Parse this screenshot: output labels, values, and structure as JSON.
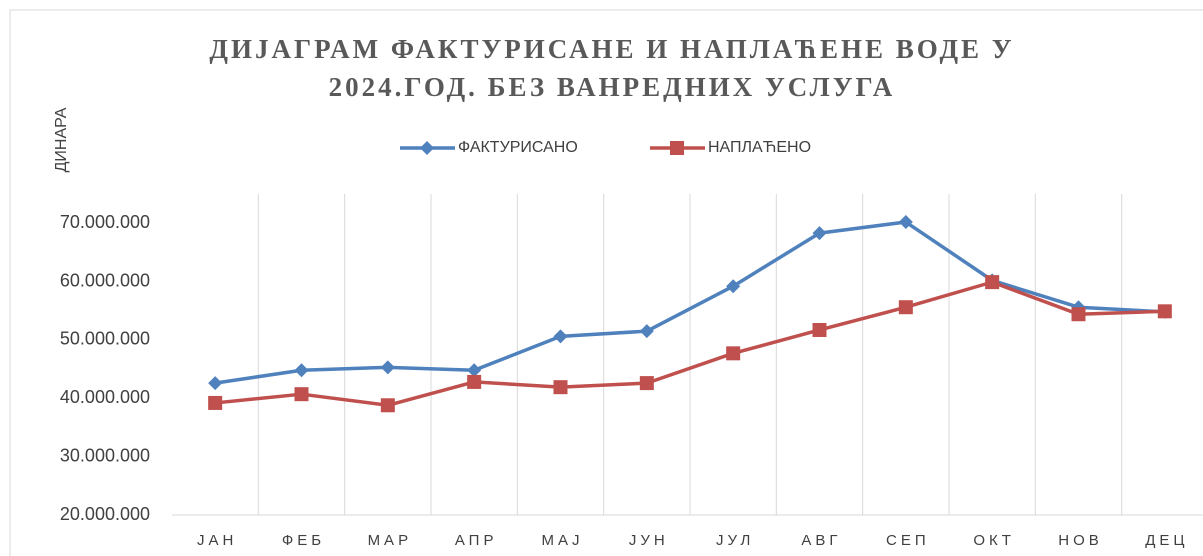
{
  "chart_data": {
    "type": "line",
    "title": [
      "ДИЈАГРАМ ФАКТУРИСАНЕ И НАПЛАЋЕНЕ ВОДЕ У",
      "2024.ГОД. БЕЗ ВАНРЕДНИХ УСЛУГА"
    ],
    "y_label": "ДИНАРА",
    "categories": [
      "ЈАН",
      "ФЕБ",
      "МАР",
      "АПР",
      "МАЈ",
      "ЈУН",
      "ЈУЛ",
      "АВГ",
      "СЕП",
      "ОКТ",
      "НОВ",
      "ДЕЦ"
    ],
    "series": [
      {
        "name": "ФАКТУРИСАНО",
        "color": "#4f81bd",
        "marker": "diamond",
        "values": [
          42600000,
          44800000,
          45300000,
          44800000,
          50600000,
          51500000,
          59200000,
          68300000,
          70200000,
          60200000,
          55600000,
          54800000
        ]
      },
      {
        "name": "НАПЛАЋЕНО",
        "color": "#c0504d",
        "marker": "square",
        "values": [
          39200000,
          40700000,
          38800000,
          42800000,
          41900000,
          42600000,
          47700000,
          51700000,
          55600000,
          59900000,
          54400000,
          54900000
        ]
      }
    ],
    "ylim": [
      20000000,
      75000000
    ],
    "yticks": [
      {
        "value": 20000000,
        "label": "20.000.000"
      },
      {
        "value": 30000000,
        "label": "30.000.000"
      },
      {
        "value": 40000000,
        "label": "40.000.000"
      },
      {
        "value": 50000000,
        "label": "50.000.000"
      },
      {
        "value": 60000000,
        "label": "60.000.000"
      },
      {
        "value": 70000000,
        "label": "70.000.000"
      }
    ],
    "grid": "vertical",
    "legend": "top"
  }
}
